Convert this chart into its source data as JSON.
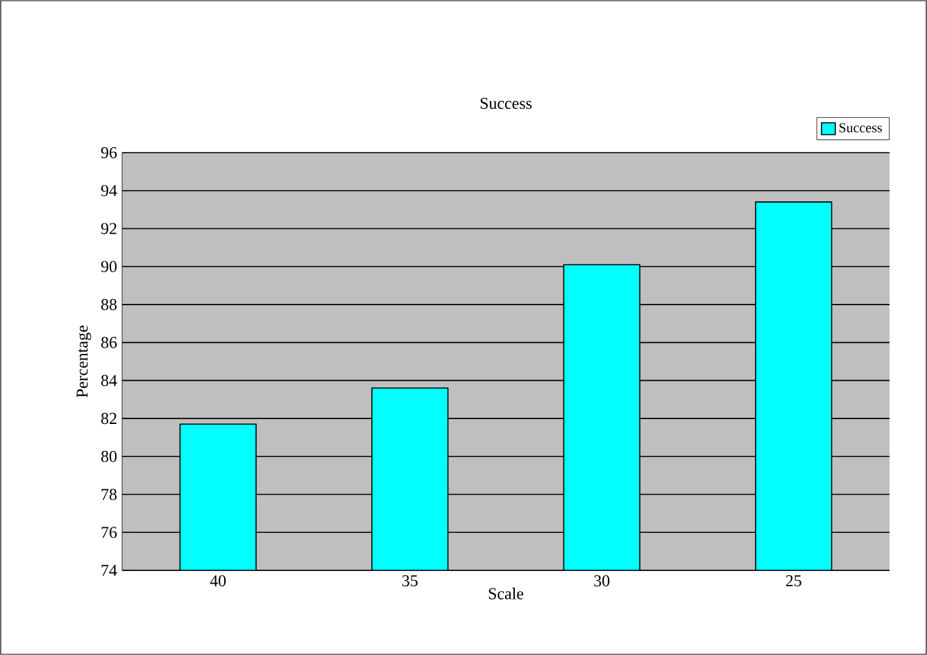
{
  "chart_data": {
    "type": "bar",
    "title": "Success",
    "xlabel": "Scale",
    "ylabel": "Percentage",
    "categories": [
      "40",
      "35",
      "30",
      "25"
    ],
    "series": [
      {
        "name": "Success",
        "color": "#00ffff",
        "values": [
          81.7,
          83.6,
          90.1,
          93.4
        ]
      }
    ],
    "ylim": [
      74,
      96
    ],
    "yticks": [
      74,
      76,
      78,
      80,
      82,
      84,
      86,
      88,
      90,
      92,
      94,
      96
    ],
    "grid": "y",
    "legend": "top right"
  }
}
